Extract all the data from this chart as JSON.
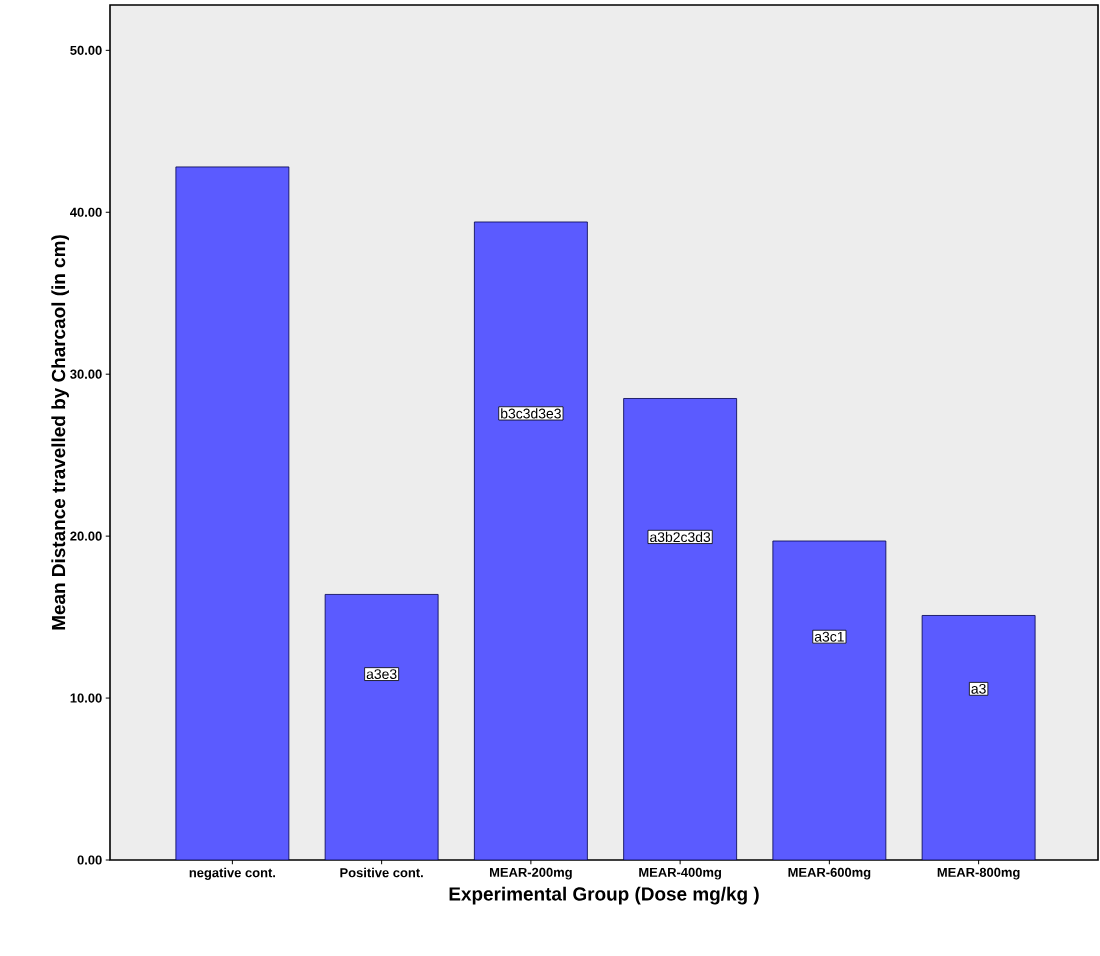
{
  "chart_data": {
    "type": "bar",
    "xlabel": "Experimental Group (Dose mg/kg )",
    "ylabel": "Mean Distance travelled by Charcaol (in cm)",
    "categories": [
      "negative cont.",
      "Positive cont.",
      "MEAR-200mg",
      "MEAR-400mg",
      "MEAR-600mg",
      "MEAR-800mg"
    ],
    "values": [
      42.8,
      16.4,
      39.4,
      28.5,
      19.7,
      15.1
    ],
    "color": "#5b5bff",
    "ylim": [
      0,
      52.8
    ],
    "yticks": [
      {
        "value": 0,
        "label": "0.00"
      },
      {
        "value": 10,
        "label": "10.00"
      },
      {
        "value": 20,
        "label": "20.00"
      },
      {
        "value": 30,
        "label": "30.00"
      },
      {
        "value": 40,
        "label": "40.00"
      },
      {
        "value": 50,
        "label": "50.00"
      }
    ],
    "value_labels": [
      null,
      "a3e3",
      "b3c3d3e3",
      "a3b2c3d3",
      "a3c1",
      "a3"
    ],
    "grid": false
  }
}
